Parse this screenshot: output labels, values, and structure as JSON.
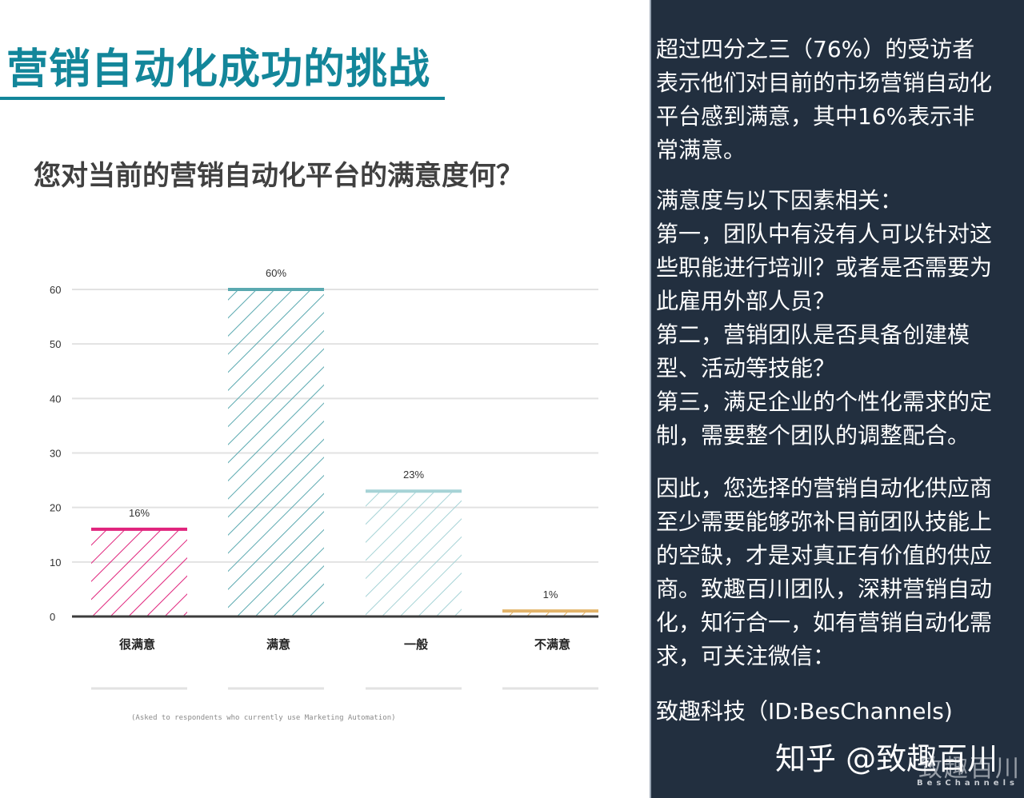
{
  "title": "营销自动化成功的挑战",
  "subtitle": "您对当前的营销自动化平台的满意度何？",
  "footnote": "(Asked to respondents who currently use Marketing Automation)",
  "chart_data": {
    "type": "bar",
    "categories": [
      "很满意",
      "满意",
      "一般",
      "不满意"
    ],
    "values": [
      16,
      60,
      23,
      1
    ],
    "data_labels": [
      "16%",
      "60%",
      "23%",
      "1%"
    ],
    "colors": [
      "#e0237c",
      "#5aa9b0",
      "#a6d3d6",
      "#e3b46a"
    ],
    "y_ticks": [
      "0",
      "10",
      "20",
      "30",
      "40",
      "50",
      "60"
    ],
    "ylim": [
      0,
      60
    ],
    "grid": true,
    "pattern": "diagonal-hatch"
  },
  "panel": {
    "paragraph1": [
      "超过四分之三（76%）的受访者",
      "表示他们对目前的市场营销自动化",
      "平台感到满意，其中16%表示非",
      "常满意。"
    ],
    "paragraph2": [
      "满意度与以下因素相关：",
      "第一，团队中有没有人可以针对这",
      "些职能进行培训？或者是否需要为",
      "此雇用外部人员？",
      "第二，营销团队是否具备创建模",
      "型、活动等技能？",
      "第三，满足企业的个性化需求的定",
      "制，需要整个团队的调整配合。"
    ],
    "paragraph3": [
      "因此，您选择的营销自动化供应商",
      "至少需要能够弥补目前团队技能上",
      "的空缺，才是对真正有价值的供应",
      "商。致趣百川团队，深耕营销自动",
      "化，知行合一，如有营销自动化需",
      "求，可关注微信："
    ],
    "paragraph4": "致趣科技（ID:BesChannels)",
    "watermark": "知乎 @致趣百川",
    "brand_mark": "致趣百川",
    "brand_sub": "BesChannels"
  }
}
